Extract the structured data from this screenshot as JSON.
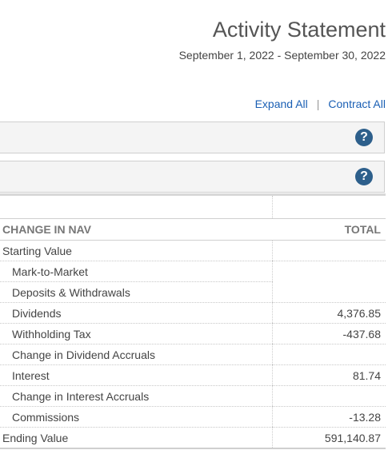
{
  "header": {
    "title": "Activity Statement",
    "period": "September 1, 2022 - September 30, 2022"
  },
  "toolbar": {
    "expand_label": "Expand All",
    "separator": "|",
    "contract_label": "Contract All"
  },
  "panels": [
    {
      "help": "?"
    },
    {
      "help": "?"
    }
  ],
  "nav_table": {
    "headers": [
      "CHANGE IN NAV",
      "TOTAL"
    ],
    "rows": [
      {
        "label": "Starting Value",
        "value": ""
      },
      {
        "label": "Mark-to-Market",
        "value": ""
      },
      {
        "label": "Deposits & Withdrawals",
        "value": ""
      },
      {
        "label": "Dividends",
        "value": "4,376.85"
      },
      {
        "label": "Withholding Tax",
        "value": "-437.68"
      },
      {
        "label": "Change in Dividend Accruals",
        "value": ""
      },
      {
        "label": "Interest",
        "value": "81.74"
      },
      {
        "label": "Change in Interest Accruals",
        "value": ""
      },
      {
        "label": "Commissions",
        "value": "-13.28"
      },
      {
        "label": "Ending Value",
        "value": "591,140.87"
      }
    ]
  }
}
